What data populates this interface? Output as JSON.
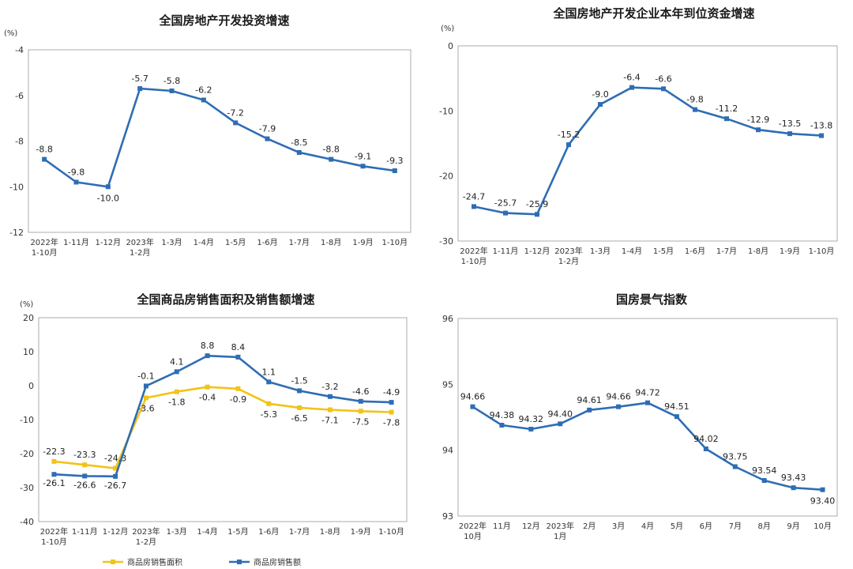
{
  "chart_data": [
    {
      "type": "line",
      "title": "全国房地产开发投资增速",
      "unit": "(%)",
      "categories": [
        [
          "2022年",
          "1-10月"
        ],
        [
          "1-11月"
        ],
        [
          "1-12月"
        ],
        [
          "2023年",
          "1-2月"
        ],
        [
          "1-3月"
        ],
        [
          "1-4月"
        ],
        [
          "1-5月"
        ],
        [
          "1-6月"
        ],
        [
          "1-7月"
        ],
        [
          "1-8月"
        ],
        [
          "1-9月"
        ],
        [
          "1-10月"
        ]
      ],
      "ylim": [
        -12,
        -4
      ],
      "yticks": [
        -4,
        -6,
        -8,
        -10,
        -12
      ],
      "series": [
        {
          "values": [
            -8.8,
            -9.8,
            -10.0,
            -5.7,
            -5.8,
            -6.2,
            -7.2,
            -7.9,
            -8.5,
            -8.8,
            -9.1,
            -9.3
          ],
          "labels": [
            "-8.8",
            "-9.8",
            "-10.0",
            "-5.7",
            "-5.8",
            "-6.2",
            "-7.2",
            "-7.9",
            "-8.5",
            "-8.8",
            "-9.1",
            "-9.3"
          ],
          "color": "#2e6db4"
        }
      ]
    },
    {
      "type": "line",
      "title": "全国房地产开发企业本年到位资金增速",
      "unit": "(%)",
      "categories": [
        [
          "2022年",
          "1-10月"
        ],
        [
          "1-11月"
        ],
        [
          "1-12月"
        ],
        [
          "2023年",
          "1-2月"
        ],
        [
          "1-3月"
        ],
        [
          "1-4月"
        ],
        [
          "1-5月"
        ],
        [
          "1-6月"
        ],
        [
          "1-7月"
        ],
        [
          "1-8月"
        ],
        [
          "1-9月"
        ],
        [
          "1-10月"
        ]
      ],
      "ylim": [
        -30,
        0
      ],
      "yticks": [
        0,
        -10,
        -20,
        -30
      ],
      "series": [
        {
          "values": [
            -24.7,
            -25.7,
            -25.9,
            -15.2,
            -9.0,
            -6.4,
            -6.6,
            -9.8,
            -11.2,
            -12.9,
            -13.5,
            -13.8
          ],
          "labels": [
            "-24.7",
            "-25.7",
            "-25.9",
            "-15.2",
            "-9.0",
            "-6.4",
            "-6.6",
            "-9.8",
            "-11.2",
            "-12.9",
            "-13.5",
            "-13.8"
          ],
          "color": "#2e6db4"
        }
      ]
    },
    {
      "type": "line",
      "title": "全国商品房销售面积及销售额增速",
      "unit": "(%)",
      "categories": [
        [
          "2022年",
          "1-10月"
        ],
        [
          "1-11月"
        ],
        [
          "1-12月"
        ],
        [
          "2023年",
          "1-2月"
        ],
        [
          "1-3月"
        ],
        [
          "1-4月"
        ],
        [
          "1-5月"
        ],
        [
          "1-6月"
        ],
        [
          "1-7月"
        ],
        [
          "1-8月"
        ],
        [
          "1-9月"
        ],
        [
          "1-10月"
        ]
      ],
      "ylim": [
        -40,
        20
      ],
      "yticks": [
        20,
        10,
        0,
        -10,
        -20,
        -30,
        -40
      ],
      "legend": "bottom",
      "series": [
        {
          "name": "商品房销售面积",
          "values": [
            -22.3,
            -23.3,
            -24.3,
            -3.6,
            -1.8,
            -0.4,
            -0.9,
            -5.3,
            -6.5,
            -7.1,
            -7.5,
            -7.8
          ],
          "labels": [
            "-22.3",
            "-23.3",
            "-24.3",
            "-3.6",
            "-1.8",
            "-0.4",
            "-0.9",
            "-5.3",
            "-6.5",
            "-7.1",
            "-7.5",
            "-7.8"
          ],
          "color": "#f2c318"
        },
        {
          "name": "商品房销售额",
          "values": [
            -26.1,
            -26.6,
            -26.7,
            -0.1,
            4.1,
            8.8,
            8.4,
            1.1,
            -1.5,
            -3.2,
            -4.6,
            -4.9
          ],
          "labels": [
            "-26.1",
            "-26.6",
            "-26.7",
            "-0.1",
            "4.1",
            "8.8",
            "8.4",
            "1.1",
            "-1.5",
            "-3.2",
            "-4.6",
            "-4.9"
          ],
          "color": "#2e6db4"
        }
      ]
    },
    {
      "type": "line",
      "title": "国房景气指数",
      "unit": "",
      "categories": [
        [
          "2022年",
          "10月"
        ],
        [
          "11月"
        ],
        [
          "12月"
        ],
        [
          "2023年",
          "1月"
        ],
        [
          "2月"
        ],
        [
          "3月"
        ],
        [
          "4月"
        ],
        [
          "5月"
        ],
        [
          "6月"
        ],
        [
          "7月"
        ],
        [
          "8月"
        ],
        [
          "9月"
        ],
        [
          "10月"
        ]
      ],
      "ylim": [
        93,
        96
      ],
      "yticks": [
        96,
        95,
        94,
        93
      ],
      "series": [
        {
          "values": [
            94.66,
            94.38,
            94.32,
            94.4,
            94.61,
            94.66,
            94.72,
            94.51,
            94.02,
            93.75,
            93.54,
            93.43,
            93.4
          ],
          "labels": [
            "94.66",
            "94.38",
            "94.32",
            "94.40",
            "94.61",
            "94.66",
            "94.72",
            "94.51",
            "94.02",
            "93.75",
            "93.54",
            "93.43",
            "93.40"
          ],
          "color": "#2e6db4"
        }
      ]
    }
  ]
}
